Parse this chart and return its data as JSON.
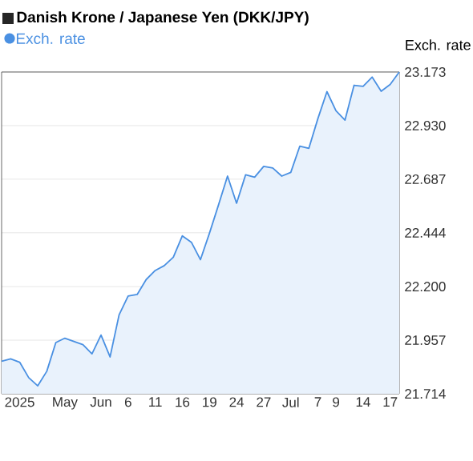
{
  "chart_data": {
    "type": "area",
    "title": "Danish Krone / Japanese Yen (DKK/JPY)",
    "ylabel": "Exch. rate",
    "categories": [
      null,
      null,
      "2025",
      null,
      null,
      null,
      null,
      "May",
      null,
      null,
      null,
      "Jun",
      null,
      null,
      "6",
      null,
      null,
      "11",
      null,
      null,
      "16",
      null,
      null,
      "19",
      null,
      null,
      "24",
      null,
      null,
      "27",
      null,
      null,
      "Jul",
      null,
      null,
      "7",
      null,
      "9",
      null,
      null,
      "14",
      null,
      null,
      "17",
      null
    ],
    "series": [
      {
        "name": "Exch. rate",
        "color": "#4a90e2",
        "values": [
          21.861,
          21.872,
          21.857,
          21.787,
          21.75,
          21.816,
          21.946,
          21.966,
          21.951,
          21.937,
          21.895,
          21.98,
          21.881,
          22.072,
          22.157,
          22.164,
          22.232,
          22.273,
          22.295,
          22.333,
          22.43,
          22.401,
          22.322,
          22.442,
          22.57,
          22.701,
          22.578,
          22.707,
          22.696,
          22.745,
          22.738,
          22.701,
          22.718,
          22.837,
          22.827,
          22.962,
          23.084,
          22.997,
          22.955,
          23.113,
          23.108,
          23.15,
          23.086,
          23.117,
          23.173
        ]
      }
    ],
    "ylim": [
      21.714,
      23.173
    ],
    "yticks": [
      21.714,
      21.957,
      {
        "value": 22.2,
        "label": "22.200"
      },
      22.444,
      22.687,
      {
        "value": 22.93,
        "label": "22.930"
      },
      23.173
    ],
    "grid": "y",
    "legend": "top left",
    "marker": "none",
    "line_style": "solid"
  }
}
